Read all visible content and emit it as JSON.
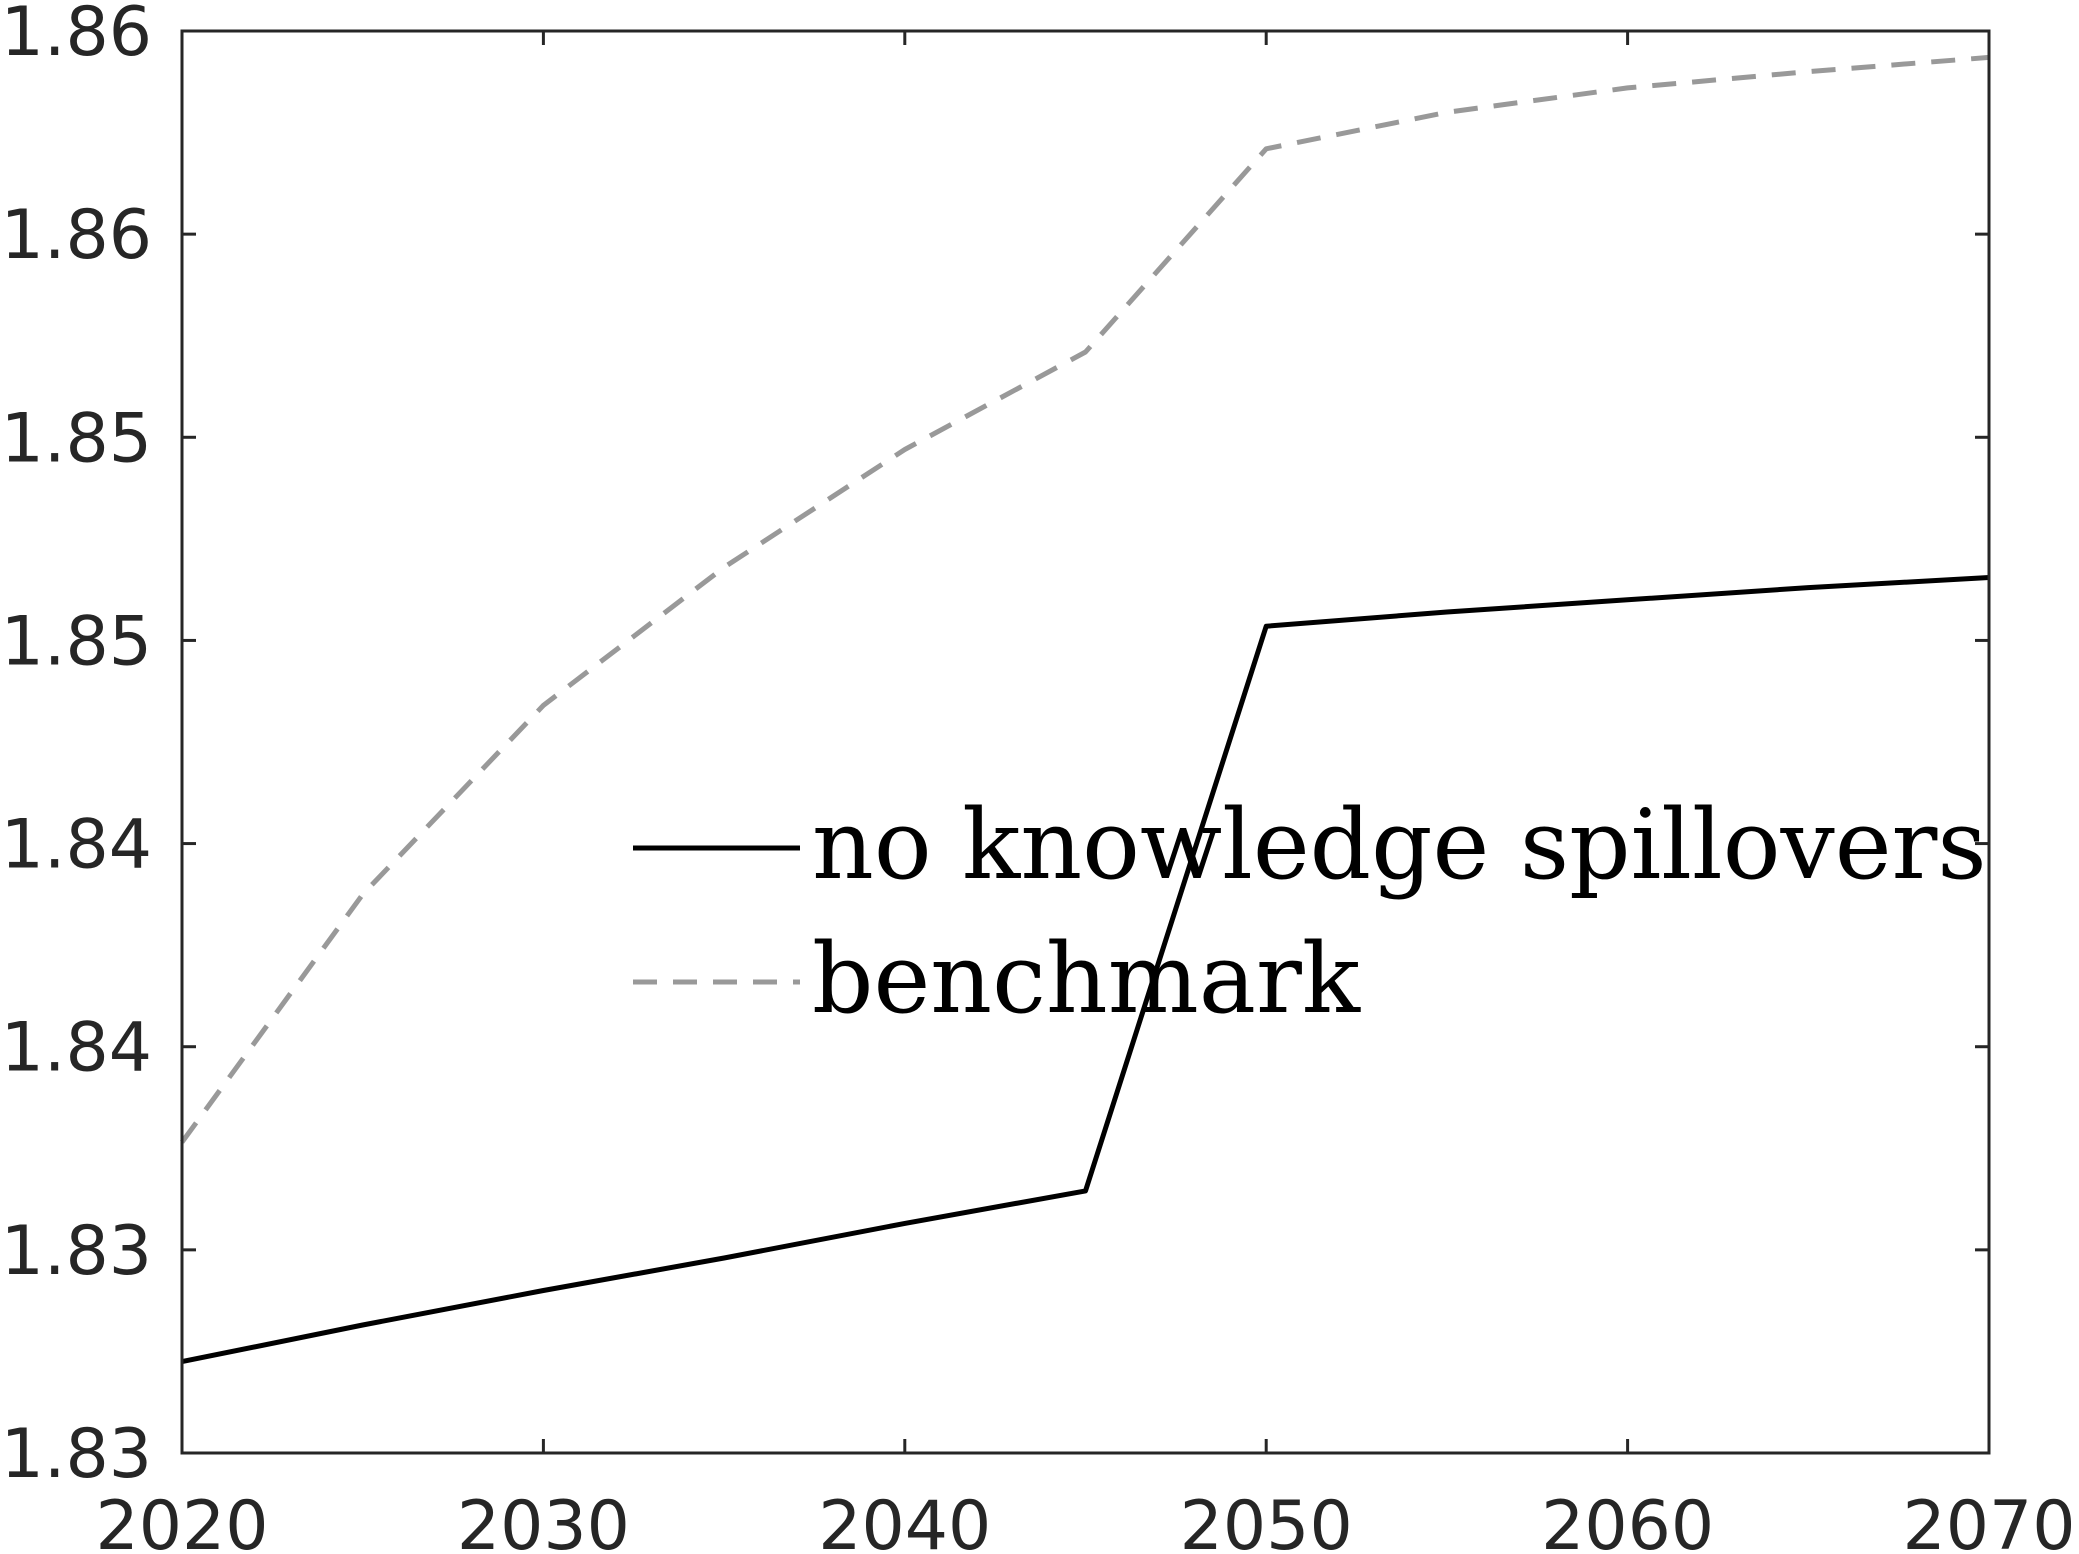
{
  "chart_data": {
    "type": "line",
    "title": "",
    "xlabel": "",
    "ylabel": "",
    "x": [
      2020,
      2025,
      2030,
      2035,
      2040,
      2045,
      2050,
      2055,
      2060,
      2065,
      2070
    ],
    "xlim": [
      2020,
      2070
    ],
    "ylim": [
      0,
      7
    ],
    "xticks": [
      2020,
      2030,
      2040,
      2050,
      2060,
      2070
    ],
    "xtick_labels": [
      "2020",
      "2030",
      "2040",
      "2050",
      "2060",
      "2070"
    ],
    "yticks": [
      0,
      1,
      2,
      3,
      4,
      5,
      6,
      7
    ],
    "ytick_labels": [
      "1.83",
      "1.83",
      "1.84",
      "1.84",
      "1.85",
      "1.85",
      "1.86",
      "1.86"
    ],
    "grid": false,
    "legend_position": "center-right",
    "series": [
      {
        "name": "no knowledge spillovers",
        "color": "#000000",
        "style": "solid",
        "values": [
          0.45,
          0.63,
          0.8,
          0.96,
          1.13,
          1.29,
          4.07,
          4.14,
          4.2,
          4.26,
          4.31
        ]
      },
      {
        "name": "benchmark",
        "color": "#999999",
        "style": "dashed",
        "values": [
          1.53,
          2.75,
          3.68,
          4.36,
          4.94,
          5.42,
          6.42,
          6.6,
          6.72,
          6.8,
          6.87
        ]
      }
    ]
  }
}
